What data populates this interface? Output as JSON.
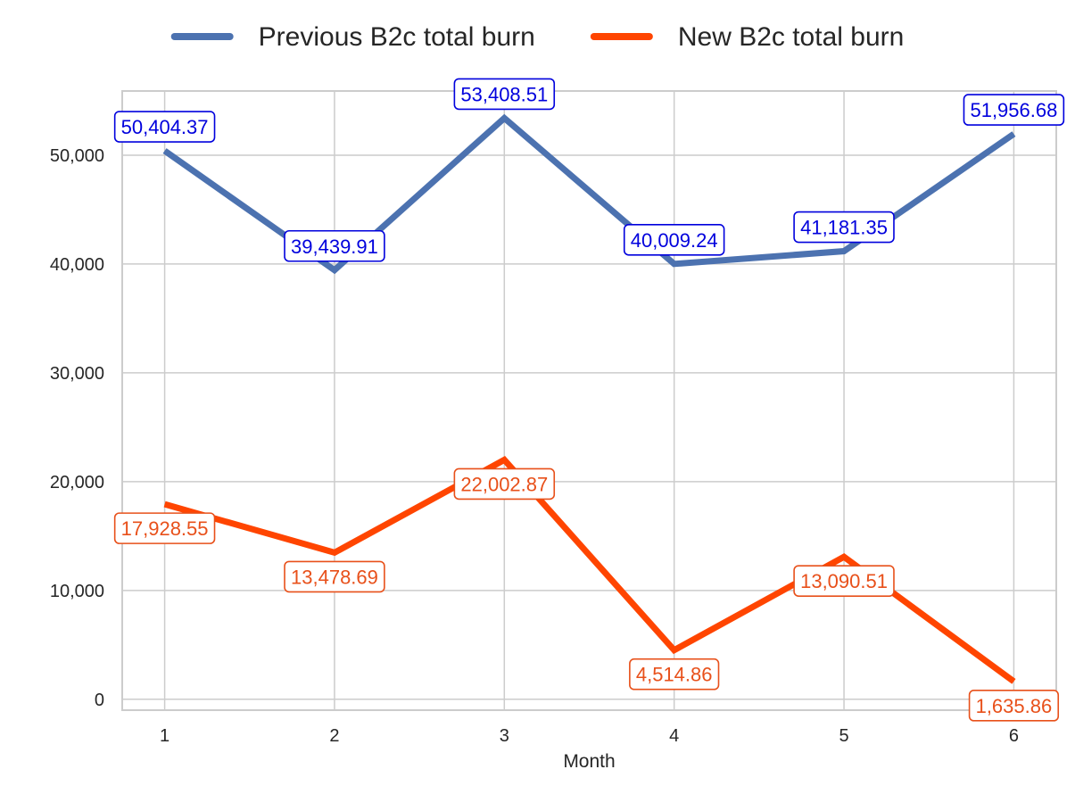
{
  "chart_data": {
    "type": "line",
    "title": "",
    "xlabel": "Month",
    "ylabel": "",
    "x": [
      1,
      2,
      3,
      4,
      5,
      6
    ],
    "xlim": [
      0.75,
      6.25
    ],
    "ylim": [
      -1000,
      55900
    ],
    "yticks": [
      0,
      10000,
      20000,
      30000,
      40000,
      50000
    ],
    "ytick_labels": [
      "0",
      "10,000",
      "20,000",
      "30,000",
      "40,000",
      "50,000"
    ],
    "xtick_labels": [
      "1",
      "2",
      "3",
      "4",
      "5",
      "6"
    ],
    "grid": true,
    "legend": "top-center",
    "series": [
      {
        "name": "Previous B2c total burn",
        "color": "#4c72b0",
        "label_color": "#0000dd",
        "label_position": "above",
        "values": [
          50404.37,
          39439.91,
          53408.51,
          40009.24,
          41181.35,
          51956.68
        ],
        "labels": [
          "50,404.37",
          "39,439.91",
          "53,408.51",
          "40,009.24",
          "41,181.35",
          "51,956.68"
        ]
      },
      {
        "name": "New B2c total burn",
        "color": "#ff4500",
        "label_color": "#e8501a",
        "label_position": "below",
        "values": [
          17928.55,
          13478.69,
          22002.87,
          4514.86,
          13090.51,
          1635.86
        ],
        "labels": [
          "17,928.55",
          "13,478.69",
          "22,002.87",
          "4,514.86",
          "13,090.51",
          "1,635.86"
        ]
      }
    ]
  }
}
